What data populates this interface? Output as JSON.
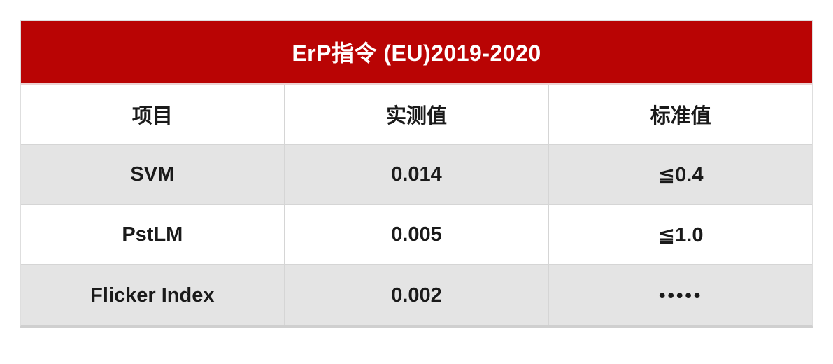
{
  "chart_data": {
    "type": "table",
    "title": "ErP指令 (EU)2019-2020",
    "columns": [
      "项目",
      "实测值",
      "标准值"
    ],
    "rows": [
      [
        "SVM",
        "0.014",
        "≦0.4"
      ],
      [
        "PstLM",
        "0.005",
        "≦1.0"
      ],
      [
        "Flicker Index",
        "0.002",
        "•••••"
      ]
    ]
  },
  "colors": {
    "title_bg": "#b90404",
    "title_text": "#ffffff",
    "row_alt_bg": "#e4e4e4",
    "row_bg": "#ffffff",
    "border": "#d5d5d5",
    "body_text": "#1a1a1a"
  }
}
